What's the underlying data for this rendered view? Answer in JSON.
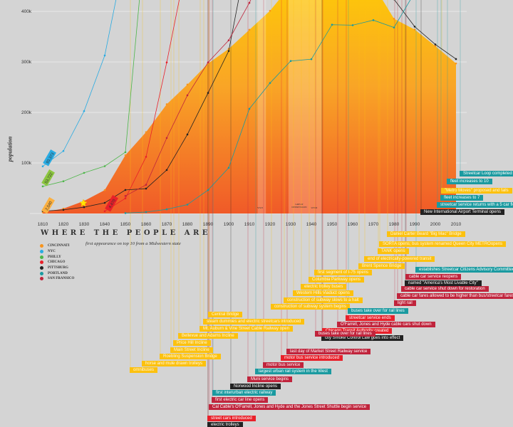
{
  "chart_data": {
    "type": "line",
    "title": "WHERE THE PEOPLE ARE",
    "subtitle": "first appearance on top 10 from a Midwestern state",
    "ylabel": "population",
    "xlabel": "",
    "ylim": [
      0,
      420000
    ],
    "xlim": [
      1810,
      2010
    ],
    "x": [
      1810,
      1820,
      1830,
      1840,
      1850,
      1860,
      1870,
      1880,
      1890,
      1900,
      1910,
      1920,
      1930,
      1940,
      1950,
      1960,
      1970,
      1980,
      1990,
      2000,
      2010
    ],
    "xticks": [
      "1810",
      "1820",
      "1830",
      "1840",
      "1850",
      "1860",
      "1870",
      "1880",
      "1890",
      "1900",
      "1910",
      "1920",
      "1930",
      "1940",
      "1950",
      "1960",
      "1970",
      "1980",
      "1990",
      "2000",
      "2010"
    ],
    "yticks": [
      {
        "v": 100000,
        "label": "100k"
      },
      {
        "v": 200000,
        "label": "200k"
      },
      {
        "v": 300000,
        "label": "300k"
      },
      {
        "v": 400000,
        "label": "400k"
      }
    ],
    "grid": true,
    "series": [
      {
        "name": "CINCINNATI",
        "color": "#f7941d",
        "style": "area",
        "values": [
          2540,
          9642,
          24831,
          46338,
          115435,
          161044,
          216239,
          255139,
          296908,
          325902,
          363591,
          401247,
          451160,
          455610,
          503998,
          502550,
          452524,
          385457,
          364040,
          331285,
          296943
        ]
      },
      {
        "name": "NYC",
        "color": "#29abe2",
        "values": [
          93373,
          123706,
          202589,
          312710,
          515547,
          null,
          null,
          null,
          null,
          null,
          null,
          null,
          null,
          null,
          null,
          null,
          null,
          null,
          null,
          null,
          null
        ]
      },
      {
        "name": "PHILLY",
        "color": "#4cb648",
        "values": [
          53722,
          63802,
          80462,
          93665,
          121376,
          565529,
          null,
          null,
          null,
          null,
          null,
          null,
          null,
          null,
          null,
          null,
          null,
          null,
          null,
          null,
          null
        ]
      },
      {
        "name": "CHICAGO",
        "color": "#e8202a",
        "values": [
          null,
          null,
          null,
          4470,
          29963,
          112172,
          298977,
          503185,
          null,
          null,
          null,
          null,
          null,
          null,
          null,
          null,
          null,
          null,
          null,
          null,
          null
        ]
      },
      {
        "name": "PITTSBURG",
        "color": "#222222",
        "values": [
          4768,
          7248,
          12568,
          21115,
          46601,
          49221,
          86076,
          156389,
          238617,
          321616,
          533905,
          null,
          null,
          null,
          null,
          null,
          null,
          423938,
          369879,
          334563,
          305704
        ]
      },
      {
        "name": "PORTLAND",
        "color": "#1a9aa0",
        "values": [
          null,
          null,
          null,
          null,
          821,
          2874,
          8293,
          17577,
          46385,
          90426,
          207214,
          258288,
          301815,
          305394,
          373628,
          372676,
          382619,
          368139,
          437319,
          null,
          null
        ]
      },
      {
        "name": "SAN FRANSICO",
        "color": "#c0243c",
        "values": [
          null,
          null,
          null,
          null,
          34776,
          56802,
          149473,
          233959,
          298997,
          342782,
          416912,
          506676,
          null,
          null,
          null,
          null,
          null,
          null,
          null,
          null,
          null
        ]
      }
    ],
    "value_labels": [
      {
        "text": "93,373",
        "series": "NYC"
      },
      {
        "text": "53,722",
        "series": "PHILLY"
      },
      {
        "text": "2,540",
        "series": "CINCINNATI"
      },
      {
        "text": "4,470",
        "series": "CHICAGO"
      }
    ],
    "annotations": [
      "WWI",
      "GREAT DEPRESSION",
      "WWII"
    ],
    "legend_position": "bottom-left"
  },
  "events": [
    {
      "text": "Daniel Carter Beard \"Big Mac\" Bridge",
      "city": "cincinnati"
    },
    {
      "text": "SORTA opens; bus system renamed Queen City METROopens",
      "city": "cincinnati"
    },
    {
      "text": "TANK opens",
      "city": "cincinnati"
    },
    {
      "text": "end of electrically-powered transit",
      "city": "cincinnati"
    },
    {
      "text": "Brent Spence Bridge",
      "city": "cincinnati"
    },
    {
      "text": "first segment of I-75 opens",
      "city": "cincinnati"
    },
    {
      "text": "Columbia Parkway opens",
      "city": "cincinnati"
    },
    {
      "text": "electric trolley buses",
      "city": "cincinnati"
    },
    {
      "text": "Western Hills Viaduct opens",
      "city": "cincinnati"
    },
    {
      "text": "construction of subway slows to a halt",
      "city": "cincinnati"
    },
    {
      "text": "construction of subway system begins",
      "city": "cincinnati"
    },
    {
      "text": "Central Bridge",
      "city": "cincinnati"
    },
    {
      "text": "steam dummies and electric streetcars introduced",
      "city": "cincinnati"
    },
    {
      "text": "Mt. Auburn & Vine Street Cable Railway open",
      "city": "cincinnati"
    },
    {
      "text": "Bellevue and Adams Incline",
      "city": "cincinnati"
    },
    {
      "text": "Price Hill Incline",
      "city": "cincinnati"
    },
    {
      "text": "Main Street Incline",
      "city": "cincinnati"
    },
    {
      "text": "Roebling Suspension Bridge",
      "city": "cincinnati"
    },
    {
      "text": "horse and mule drawn trolleys",
      "city": "cincinnati"
    },
    {
      "text": "omnibuses",
      "city": "cincinnati"
    },
    {
      "text": "establishes Streetcar Citizens Advisory Committee",
      "city": "portland"
    },
    {
      "text": "buses take over for rail lines",
      "city": "portland"
    },
    {
      "text": "largest urban rail system in the West",
      "city": "portland"
    },
    {
      "text": "first interurban electric railway",
      "city": "portland"
    },
    {
      "text": "Streetcar Loop completed",
      "city": "portland"
    },
    {
      "text": "fleet increases to 10",
      "city": "portland"
    },
    {
      "text": "\"Metro Moves\" proposed and fails",
      "city": "cincinnati"
    },
    {
      "text": "fleet increases to 7",
      "city": "portland"
    },
    {
      "text": "streetcar service returns with a 5 car fleet",
      "city": "portland"
    },
    {
      "text": "New International Airport Terminal opens",
      "city": "pittsburgh"
    },
    {
      "text": "cable car service reopens",
      "city": "sf"
    },
    {
      "text": "named \"America's Most Livable City\"",
      "city": "pittsburgh"
    },
    {
      "text": "cable car service shut down for restoration",
      "city": "sf"
    },
    {
      "text": "cable car fares allowed to be higher than bus/streetcar fares",
      "city": "sf"
    },
    {
      "text": "light rail",
      "city": "sf"
    },
    {
      "text": "streetcar service ends",
      "city": "chicago"
    },
    {
      "text": "O'Farrell, Jones and Hyde cable cars shut down",
      "city": "sf"
    },
    {
      "text": "Chicago Transit Authority created",
      "city": "chicago"
    },
    {
      "text": "city Smoke Control Law goes into effect",
      "city": "pittsburgh"
    },
    {
      "text": "buses take over for rail lines",
      "city": "sf"
    },
    {
      "text": "last day of Market Street Railway service",
      "city": "sf"
    },
    {
      "text": "motor bus service introduced",
      "city": "chicago"
    },
    {
      "text": "motor bus service",
      "city": "sf"
    },
    {
      "text": "Muni service begins",
      "city": "sf"
    },
    {
      "text": "Norwood Incline opens",
      "city": "pittsburgh"
    },
    {
      "text": "first electric car line opens",
      "city": "sf"
    },
    {
      "text": "Cal Cable's O'Farrell, Jones and Hyde and the Jones Street Shuttle begin service",
      "city": "sf"
    },
    {
      "text": "street cars introduced",
      "city": "chicago"
    },
    {
      "text": "electric trolleys",
      "city": "pittsburgh"
    }
  ],
  "colors": {
    "cincinnati": "#fcc10f",
    "portland": "#1a9aa0",
    "sf": "#c0243c",
    "chicago": "#e8202a",
    "pittsburgh": "#222222"
  }
}
